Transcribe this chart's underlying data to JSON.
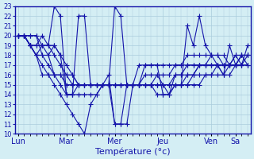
{
  "title": "",
  "xlabel": "Température (°c)",
  "ylabel": "",
  "background_color": "#d4eef4",
  "plot_bg_color": "#d4eef4",
  "line_color": "#1414aa",
  "marker": "+",
  "marker_size": 5,
  "ylim": [
    10,
    23
  ],
  "yticks": [
    10,
    11,
    12,
    13,
    14,
    15,
    16,
    17,
    18,
    19,
    20,
    21,
    22,
    23
  ],
  "day_labels": [
    "Lun",
    "Mar",
    "Mer",
    "Jeu",
    "Ven",
    "Sa"
  ],
  "day_positions": [
    0,
    8,
    16,
    24,
    32,
    36
  ],
  "total_points": 39,
  "lines": [
    [
      20,
      20,
      19,
      18,
      19,
      18,
      19,
      18,
      14,
      14,
      15,
      15,
      15,
      15,
      15,
      16,
      11,
      11,
      15,
      15,
      15,
      15,
      15,
      15,
      15,
      14,
      15,
      15,
      15,
      16,
      16,
      16,
      16,
      17,
      16,
      17,
      17,
      18,
      17
    ],
    [
      20,
      20,
      19,
      19,
      20,
      19,
      23,
      22,
      14,
      14,
      22,
      22,
      15,
      15,
      15,
      15,
      23,
      22,
      15,
      15,
      15,
      17,
      17,
      17,
      14,
      14,
      15,
      15,
      21,
      19,
      22,
      19,
      18,
      17,
      16,
      19,
      17,
      17,
      19
    ],
    [
      20,
      20,
      20,
      20,
      18,
      18,
      16,
      16,
      16,
      16,
      15,
      15,
      15,
      15,
      15,
      15,
      15,
      15,
      15,
      15,
      15,
      15,
      15,
      16,
      15,
      15,
      16,
      16,
      16,
      16,
      17,
      17,
      17,
      17,
      17,
      17,
      18,
      18,
      18
    ],
    [
      20,
      20,
      19,
      18,
      18,
      17,
      16,
      16,
      15,
      15,
      15,
      15,
      15,
      15,
      15,
      15,
      15,
      15,
      15,
      15,
      17,
      17,
      17,
      17,
      17,
      17,
      17,
      17,
      18,
      18,
      18,
      18,
      18,
      18,
      18,
      17,
      17,
      17,
      17
    ],
    [
      20,
      20,
      19,
      18,
      16,
      16,
      15,
      14,
      13,
      12,
      11,
      10,
      13,
      14,
      15,
      15,
      11,
      11,
      11,
      15,
      15,
      15,
      15,
      14,
      14,
      14,
      16,
      16,
      17,
      17,
      17,
      17,
      18,
      18,
      17,
      17,
      18,
      17,
      18
    ],
    [
      20,
      20,
      19,
      19,
      19,
      19,
      19,
      18,
      17,
      16,
      15,
      15,
      15,
      15,
      15,
      15,
      15,
      15,
      15,
      15,
      15,
      15,
      15,
      15,
      15,
      15,
      15,
      15,
      16,
      16,
      17,
      17,
      17,
      17,
      17,
      17,
      17,
      18,
      18
    ],
    [
      20,
      20,
      19,
      18,
      17,
      16,
      16,
      15,
      14,
      14,
      14,
      14,
      14,
      14,
      15,
      15,
      15,
      15,
      15,
      15,
      15,
      15,
      15,
      15,
      15,
      15,
      15,
      15,
      15,
      15,
      15,
      16,
      16,
      16,
      16,
      16,
      17,
      17,
      17
    ],
    [
      20,
      20,
      20,
      20,
      19,
      19,
      18,
      17,
      16,
      15,
      15,
      15,
      15,
      15,
      15,
      15,
      15,
      15,
      15,
      15,
      15,
      16,
      16,
      16,
      16,
      16,
      17,
      17,
      17,
      17,
      17,
      17,
      17,
      17,
      17,
      17,
      17,
      18,
      18
    ]
  ]
}
